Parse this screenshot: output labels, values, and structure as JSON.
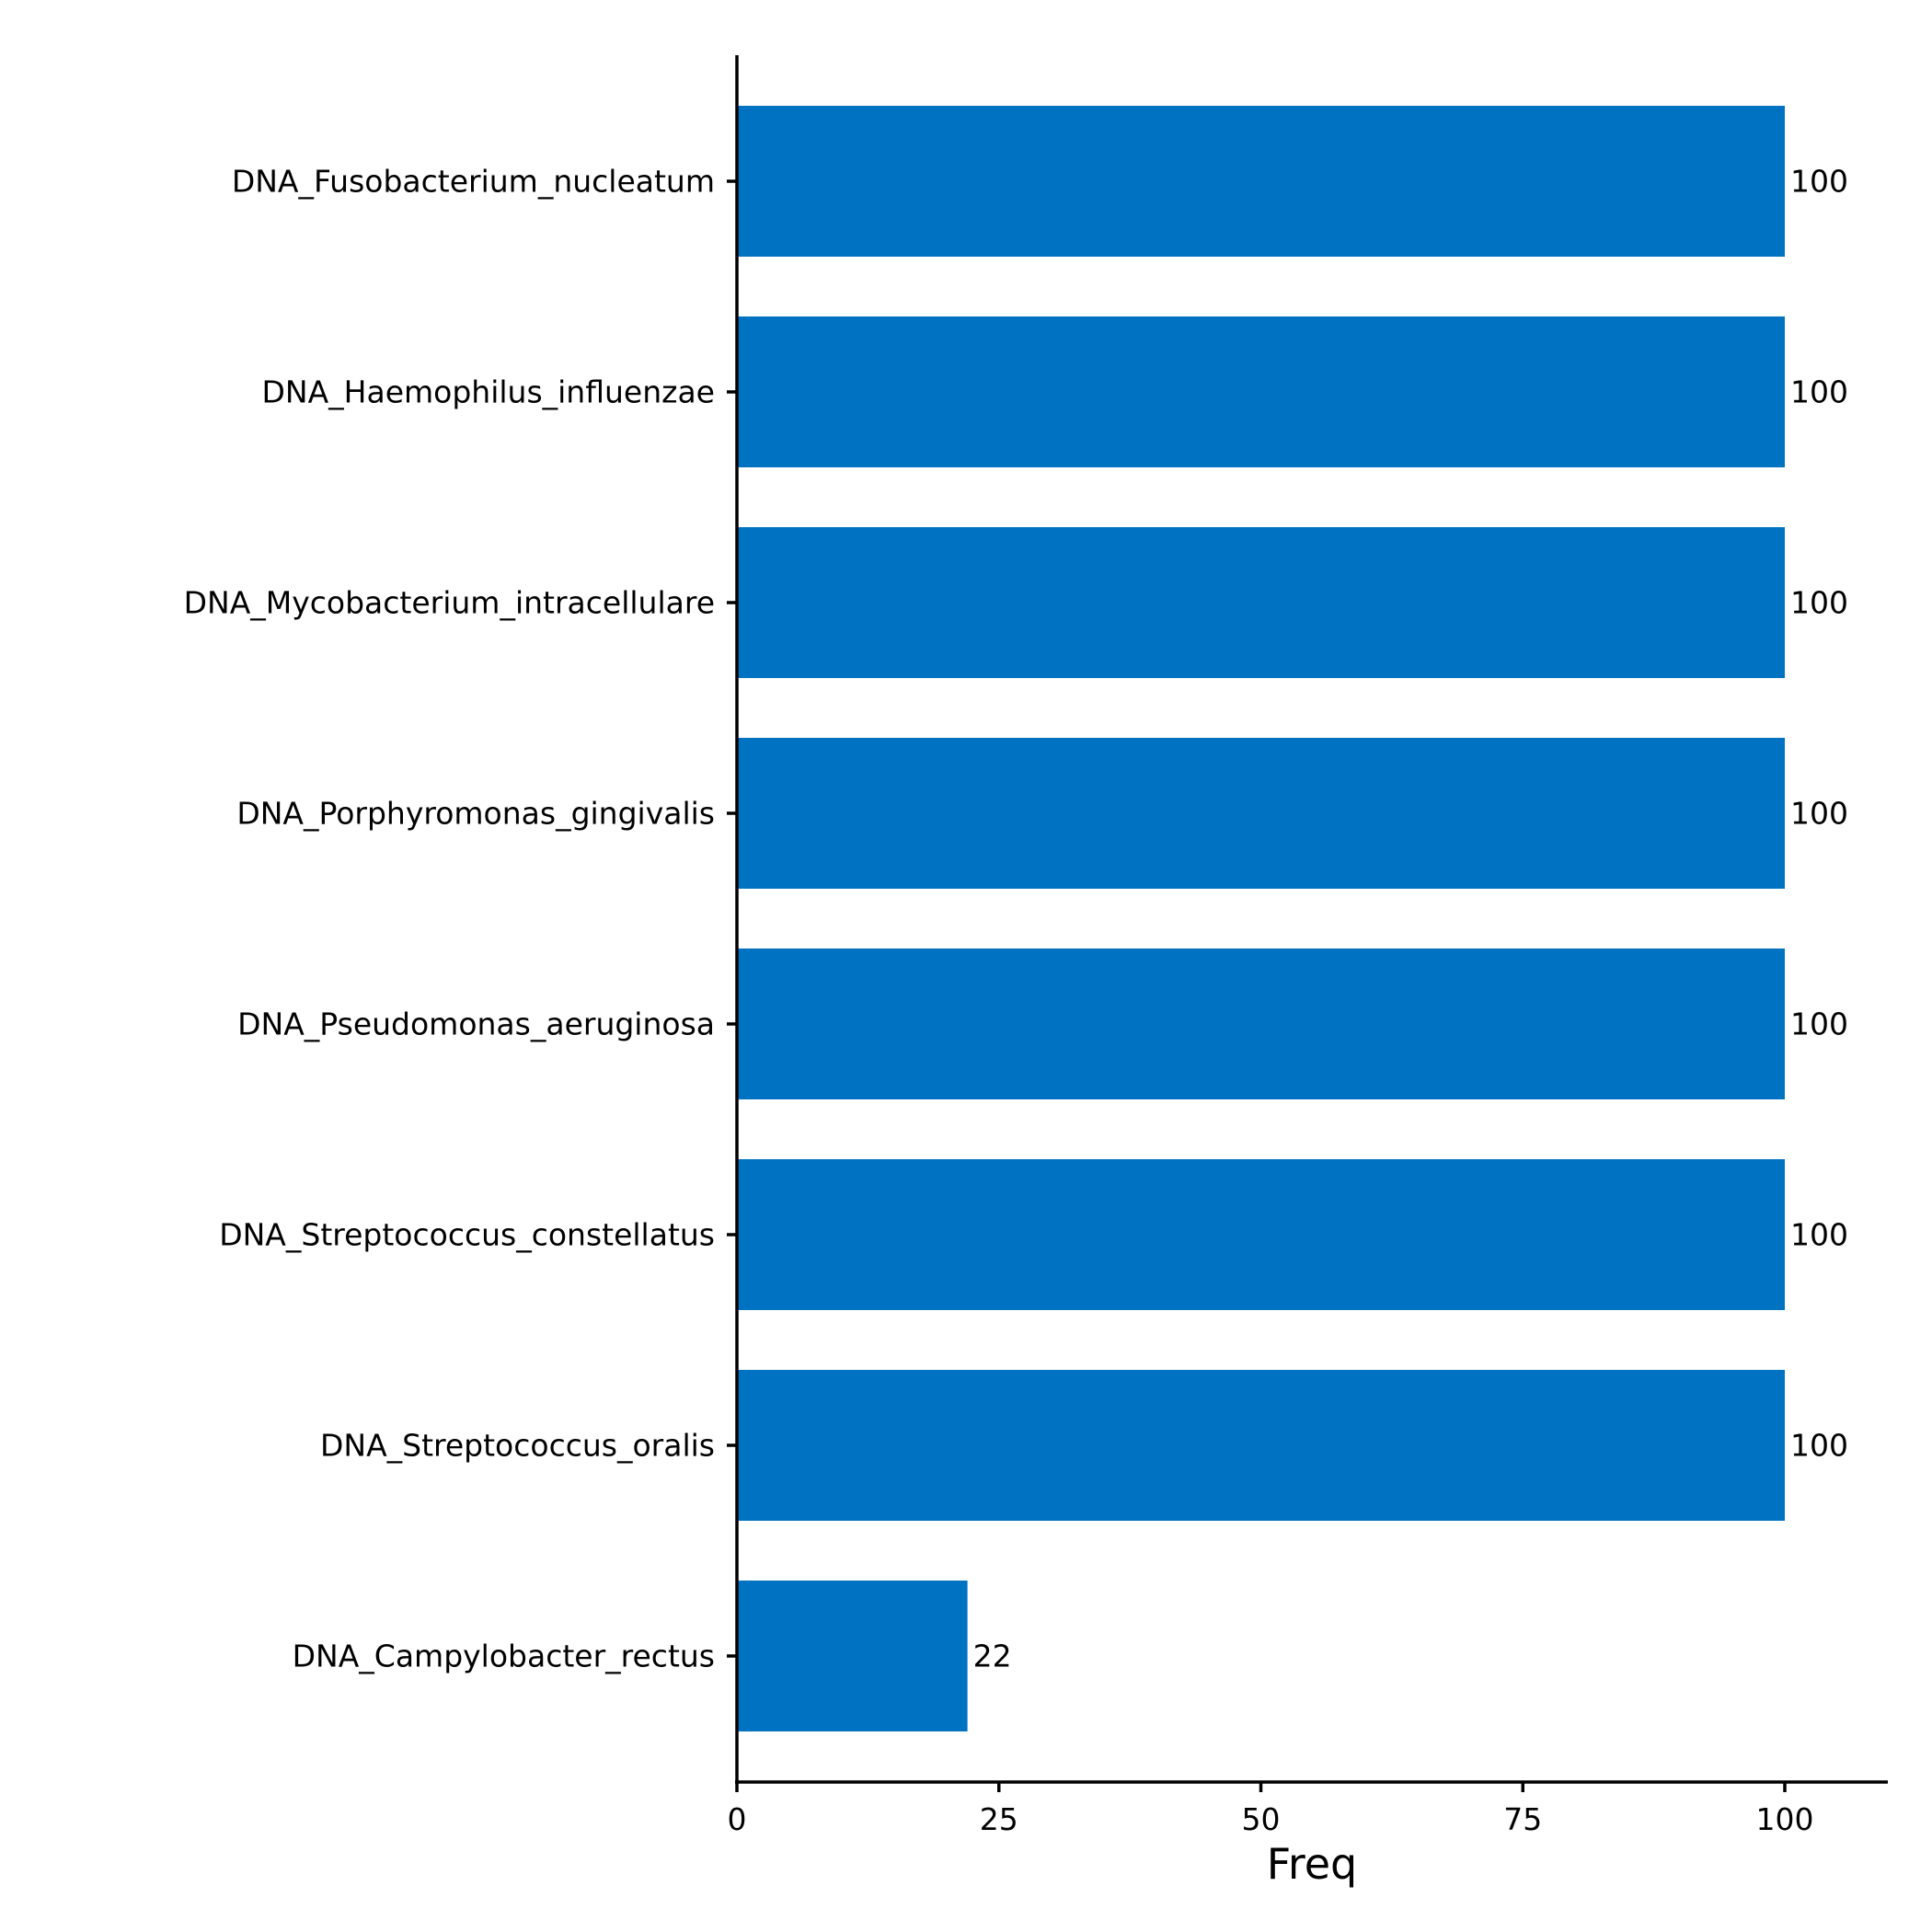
{
  "chart_data": {
    "type": "bar",
    "orientation": "horizontal",
    "categories": [
      "DNA_Fusobacterium_nucleatum",
      "DNA_Haemophilus_influenzae",
      "DNA_Mycobacterium_intracellulare",
      "DNA_Porphyromonas_gingivalis",
      "DNA_Pseudomonas_aeruginosa",
      "DNA_Streptococcus_constellatus",
      "DNA_Streptococcus_oralis",
      "DNA_Campylobacter_rectus"
    ],
    "values": [
      100,
      100,
      100,
      100,
      100,
      100,
      100,
      22
    ],
    "data_labels": [
      "100",
      "100",
      "100",
      "100",
      "100",
      "100",
      "100",
      "22"
    ],
    "title": "",
    "xlabel": "Freq",
    "ylabel": "",
    "xlim": [
      0,
      110
    ],
    "xticks": [
      0,
      25,
      50,
      75,
      100
    ],
    "xtick_labels": [
      "0",
      "25",
      "50",
      "75",
      "100"
    ],
    "grid": false,
    "legend": "none",
    "bar_color": "#0072C2"
  }
}
